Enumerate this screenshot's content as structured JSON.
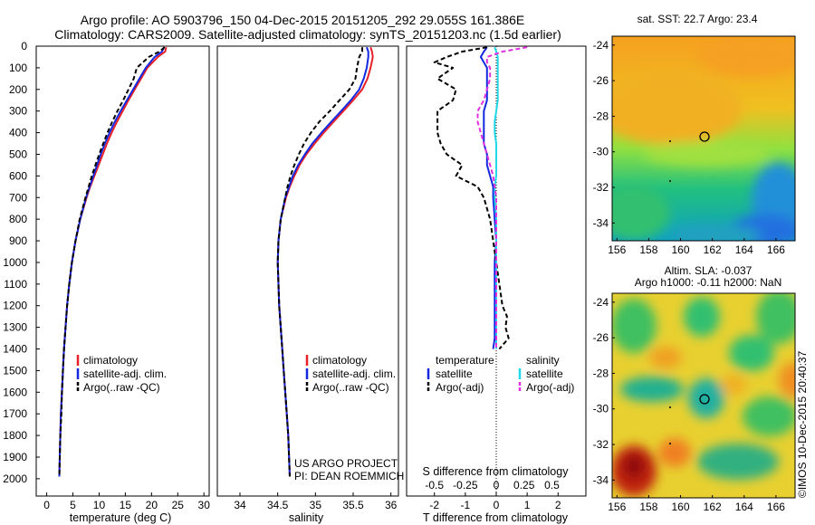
{
  "header": {
    "title_line1": "Argo profile: AO 5903796_150 04-Dec-2015 20151205_292 29.055S 161.386E",
    "title_line2": "Climatology: CARS2009. Satellite-adjusted climatology: synTS_20151203.nc (1.5d earlier)"
  },
  "legend_ts": {
    "climatology": "climatology",
    "satellite": "satellite-adj. clim.",
    "argo": "Argo(..raw -QC)"
  },
  "legend_diff": {
    "temperature_heading": "temperature",
    "salinity_heading": "salinity",
    "t_satellite": "satellite",
    "t_argo": "Argo(-adj)",
    "s_satellite": "satellite",
    "s_argo": "Argo(-adj)"
  },
  "project": {
    "line1": "US ARGO PROJECT",
    "line2": "PI: DEAN ROEMMICH"
  },
  "maps": {
    "sst_title": "sat. SST: 22.7 Argo: 23.4",
    "sla_title_line1": "Altim. SLA: -0.037",
    "sla_title_line2": "Argo h1000: -0.11 h2000: NaN",
    "credit": "©IMOS 10-Dec-2015 20:40:37",
    "lat_ticks": [
      "-24",
      "-26",
      "-28",
      "-30",
      "-32",
      "-34"
    ],
    "lon_ticks": [
      "156",
      "158",
      "160",
      "162",
      "164",
      "166"
    ]
  },
  "colors": {
    "climatology": "#e8202a",
    "satellite": "#1428e0",
    "argo": "#000000",
    "salinity_satellite": "#20d8e8",
    "salinity_argo": "#e030e0"
  },
  "chart_data": [
    {
      "type": "line",
      "xlabel": "temperature (deg C)",
      "ylabel": "",
      "xlim": [
        -2,
        31
      ],
      "ylim": [
        2080,
        0
      ],
      "xticks": [
        "0",
        "5",
        "10",
        "15",
        "20",
        "25",
        "30"
      ],
      "yticks": [
        "0",
        "100",
        "200",
        "300",
        "400",
        "500",
        "600",
        "700",
        "800",
        "900",
        "1000",
        "1100",
        "1200",
        "1300",
        "1400",
        "1500",
        "1600",
        "1700",
        "1800",
        "1900",
        "2000"
      ],
      "depth": [
        5,
        25,
        50,
        100,
        150,
        200,
        250,
        300,
        350,
        400,
        450,
        500,
        550,
        600,
        650,
        700,
        800,
        900,
        1000,
        1100,
        1200,
        1300,
        1400,
        1500,
        1600,
        1700,
        1800,
        1900,
        1990
      ],
      "series": [
        {
          "name": "climatology",
          "values": [
            22.8,
            22.6,
            21.2,
            19.2,
            18.0,
            16.8,
            15.6,
            14.5,
            13.4,
            12.4,
            11.5,
            10.7,
            9.9,
            9.1,
            8.3,
            7.6,
            6.4,
            5.5,
            4.8,
            4.3,
            3.9,
            3.6,
            3.3,
            3.1,
            2.9,
            2.7,
            2.6,
            2.5,
            2.4
          ]
        },
        {
          "name": "satellite-adj. clim.",
          "values": [
            22.4,
            22.0,
            20.6,
            18.9,
            17.7,
            16.5,
            15.3,
            14.1,
            13.0,
            12.0,
            11.1,
            10.3,
            9.6,
            8.9,
            8.2,
            7.5,
            6.4,
            5.5,
            4.8,
            4.3,
            3.9,
            3.6,
            3.3,
            3.1,
            2.9,
            2.7,
            2.6,
            2.5,
            2.4
          ]
        },
        {
          "name": "Argo(..raw -QC)",
          "values": [
            22.5,
            21.5,
            19.5,
            17.2,
            16.6,
            15.6,
            14.6,
            13.5,
            12.5,
            11.6,
            10.8,
            10.0,
            9.3,
            8.6,
            8.0,
            7.4,
            6.3,
            5.5,
            4.8,
            4.3,
            3.9,
            3.6,
            3.3,
            3.1,
            2.9,
            2.8,
            2.6,
            2.5,
            2.4
          ]
        }
      ]
    },
    {
      "type": "line",
      "xlabel": "salinity",
      "ylabel": "",
      "xlim": [
        33.7,
        36.1
      ],
      "ylim": [
        2080,
        0
      ],
      "xticks": [
        "34",
        "34.5",
        "35",
        "35.5",
        "36"
      ],
      "depth": [
        5,
        25,
        50,
        100,
        150,
        200,
        250,
        300,
        350,
        400,
        450,
        500,
        550,
        600,
        650,
        700,
        800,
        900,
        1000,
        1100,
        1200,
        1300,
        1400,
        1500,
        1600,
        1700,
        1800,
        1900,
        1990
      ],
      "series": [
        {
          "name": "climatology",
          "values": [
            35.73,
            35.75,
            35.76,
            35.73,
            35.69,
            35.62,
            35.5,
            35.37,
            35.24,
            35.11,
            34.99,
            34.88,
            34.79,
            34.72,
            34.66,
            34.61,
            34.54,
            34.51,
            34.5,
            34.51,
            34.52,
            34.54,
            34.56,
            34.58,
            34.6,
            34.62,
            34.64,
            34.65,
            34.66
          ]
        },
        {
          "name": "satellite-adj. clim.",
          "values": [
            35.68,
            35.7,
            35.7,
            35.68,
            35.64,
            35.58,
            35.47,
            35.34,
            35.21,
            35.08,
            34.96,
            34.86,
            34.77,
            34.7,
            34.65,
            34.6,
            34.54,
            34.51,
            34.5,
            34.51,
            34.52,
            34.54,
            34.56,
            34.58,
            34.6,
            34.62,
            34.64,
            34.65,
            34.66
          ]
        },
        {
          "name": "Argo(..raw -QC)",
          "values": [
            35.62,
            35.62,
            35.58,
            35.55,
            35.53,
            35.45,
            35.32,
            35.19,
            35.05,
            34.94,
            34.85,
            34.78,
            34.72,
            34.67,
            34.63,
            34.6,
            34.54,
            34.51,
            34.5,
            34.51,
            34.52,
            34.54,
            34.56,
            34.58,
            34.6,
            34.62,
            34.64,
            34.65,
            34.66
          ]
        }
      ]
    },
    {
      "type": "line",
      "xlabel": "T difference from climatology",
      "xlabel_top": "S difference from climatology",
      "xlim": [
        -2.9,
        2.9
      ],
      "ylim": [
        2080,
        0
      ],
      "xticks": [
        "-2",
        "-1",
        "0",
        "1",
        "2"
      ],
      "xticks_s": [
        {
          "label": "-0.5",
          "t_pos": -2.0
        },
        {
          "label": "-0.25",
          "t_pos": -1.0
        },
        {
          "label": "0",
          "t_pos": 0.0
        },
        {
          "label": "0.25",
          "t_pos": 0.9
        },
        {
          "label": "0.5",
          "t_pos": 1.8
        }
      ],
      "depth": [
        5,
        25,
        50,
        75,
        100,
        150,
        200,
        250,
        300,
        350,
        400,
        450,
        500,
        550,
        600,
        650,
        700,
        800,
        900,
        1000,
        1100,
        1200,
        1250,
        1300,
        1350,
        1400
      ],
      "series": [
        {
          "name": "temperature satellite",
          "values": [
            -0.3,
            -0.4,
            -0.5,
            -0.4,
            -0.3,
            -0.3,
            -0.3,
            -0.3,
            -0.4,
            -0.4,
            -0.4,
            -0.4,
            -0.3,
            -0.3,
            -0.2,
            -0.1,
            -0.1,
            -0.05,
            0.0,
            -0.05,
            -0.05,
            -0.05,
            -0.05,
            -0.05,
            -0.05,
            -0.1
          ]
        },
        {
          "name": "temperature Argo(-adj)",
          "values": [
            -0.3,
            -1.1,
            -1.6,
            -2.0,
            -1.4,
            -1.9,
            -1.3,
            -1.4,
            -1.9,
            -1.9,
            -1.9,
            -1.8,
            -1.6,
            -1.1,
            -1.3,
            -0.6,
            -0.4,
            -0.2,
            -0.1,
            0.0,
            0.1,
            0.2,
            0.35,
            0.3,
            0.4,
            0.1
          ]
        },
        {
          "name": "salinity satellite",
          "values": [
            -0.05,
            0.0,
            0.05,
            0.05,
            0.05,
            0.05,
            0.05,
            0.05,
            0.0,
            -0.05,
            -0.05,
            0.0,
            0.0,
            0.0,
            0.0,
            -0.05,
            -0.05,
            0.0,
            0.0,
            0.0,
            0.0,
            0.0,
            0.0,
            0.0,
            0.0,
            0.0
          ]
        },
        {
          "name": "salinity Argo(-adj)",
          "values": [
            1.0,
            0.2,
            -0.3,
            -0.3,
            -0.2,
            -0.2,
            -0.3,
            -0.4,
            -0.6,
            -0.6,
            -0.5,
            -0.4,
            -0.3,
            -0.2,
            -0.1,
            -0.05,
            0.0,
            0.0,
            0.0,
            0.0,
            0.0,
            0.0,
            0.0,
            0.0,
            0.0,
            0.0
          ]
        }
      ]
    }
  ]
}
